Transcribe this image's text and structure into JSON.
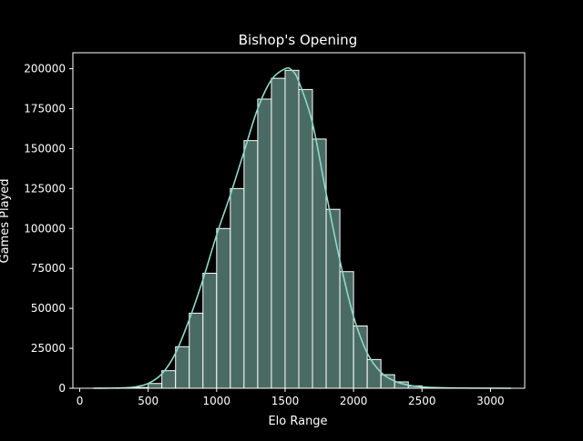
{
  "chart_data": {
    "type": "bar",
    "title": "Bishop's Opening",
    "xlabel": "Elo Range",
    "ylabel": "Games Played",
    "xlim": [
      -50,
      3250
    ],
    "ylim": [
      0,
      210000
    ],
    "xticks": [
      0,
      500,
      1000,
      1500,
      2000,
      2500,
      3000
    ],
    "yticks": [
      0,
      25000,
      50000,
      75000,
      100000,
      125000,
      150000,
      175000,
      200000
    ],
    "bin_width": 100,
    "bins": [
      {
        "x0": 100,
        "x1": 200,
        "value": 0
      },
      {
        "x0": 200,
        "x1": 300,
        "value": 0
      },
      {
        "x0": 300,
        "x1": 400,
        "value": 100
      },
      {
        "x0": 400,
        "x1": 500,
        "value": 500
      },
      {
        "x0": 500,
        "x1": 600,
        "value": 3000
      },
      {
        "x0": 600,
        "x1": 700,
        "value": 11000
      },
      {
        "x0": 700,
        "x1": 800,
        "value": 26000
      },
      {
        "x0": 800,
        "x1": 900,
        "value": 47000
      },
      {
        "x0": 900,
        "x1": 1000,
        "value": 72000
      },
      {
        "x0": 1000,
        "x1": 1100,
        "value": 100000
      },
      {
        "x0": 1100,
        "x1": 1200,
        "value": 125000
      },
      {
        "x0": 1200,
        "x1": 1300,
        "value": 155000
      },
      {
        "x0": 1300,
        "x1": 1400,
        "value": 181000
      },
      {
        "x0": 1400,
        "x1": 1500,
        "value": 194000
      },
      {
        "x0": 1500,
        "x1": 1600,
        "value": 199000
      },
      {
        "x0": 1600,
        "x1": 1700,
        "value": 187000
      },
      {
        "x0": 1700,
        "x1": 1800,
        "value": 156000
      },
      {
        "x0": 1800,
        "x1": 1900,
        "value": 112000
      },
      {
        "x0": 1900,
        "x1": 2000,
        "value": 73000
      },
      {
        "x0": 2000,
        "x1": 2100,
        "value": 39000
      },
      {
        "x0": 2100,
        "x1": 2200,
        "value": 18000
      },
      {
        "x0": 2200,
        "x1": 2300,
        "value": 8500
      },
      {
        "x0": 2300,
        "x1": 2400,
        "value": 4000
      },
      {
        "x0": 2400,
        "x1": 2500,
        "value": 1500
      },
      {
        "x0": 2500,
        "x1": 2600,
        "value": 500
      },
      {
        "x0": 2600,
        "x1": 2700,
        "value": 200
      },
      {
        "x0": 2700,
        "x1": 2800,
        "value": 100
      },
      {
        "x0": 2800,
        "x1": 2900,
        "value": 0
      },
      {
        "x0": 2900,
        "x1": 3000,
        "value": 0
      },
      {
        "x0": 3000,
        "x1": 3100,
        "value": 0
      }
    ],
    "kde_curve": [
      [
        100,
        0
      ],
      [
        300,
        200
      ],
      [
        400,
        800
      ],
      [
        500,
        3000
      ],
      [
        600,
        9000
      ],
      [
        700,
        22000
      ],
      [
        800,
        43000
      ],
      [
        900,
        68000
      ],
      [
        1000,
        96000
      ],
      [
        1100,
        121000
      ],
      [
        1200,
        148000
      ],
      [
        1300,
        175000
      ],
      [
        1400,
        193000
      ],
      [
        1500,
        200000
      ],
      [
        1550,
        199000
      ],
      [
        1600,
        192000
      ],
      [
        1700,
        166000
      ],
      [
        1800,
        122000
      ],
      [
        1900,
        80000
      ],
      [
        2000,
        45000
      ],
      [
        2100,
        22000
      ],
      [
        2200,
        10000
      ],
      [
        2300,
        4500
      ],
      [
        2400,
        2000
      ],
      [
        2500,
        800
      ],
      [
        2700,
        200
      ],
      [
        3150,
        0
      ]
    ],
    "grid": false,
    "colors": {
      "background": "#000000",
      "bar_fill": "#4a6b64",
      "bar_edge": "#ffffff",
      "kde_line": "#8ed8c8",
      "axes": "#ffffff",
      "text": "#ffffff"
    }
  }
}
